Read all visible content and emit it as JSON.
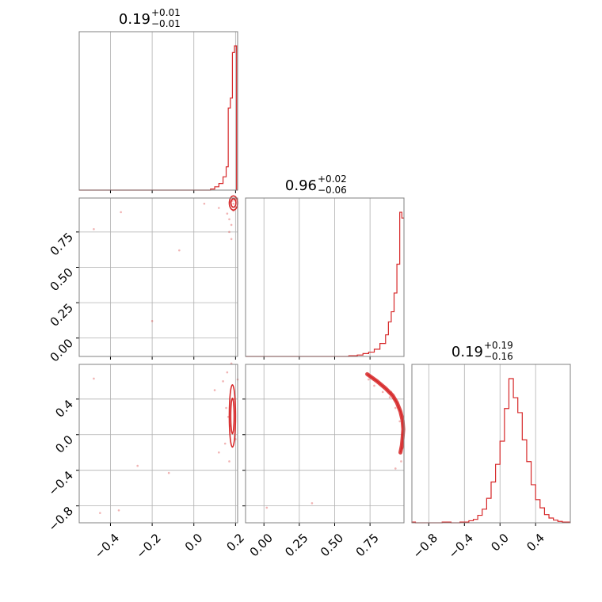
{
  "accent_color": "#d62728",
  "chart_data": {
    "type": "corner",
    "parameters": [
      {
        "title_value": "0.19",
        "title_plus": "+0.01",
        "title_minus": "−0.01",
        "range": [
          -0.55,
          0.21
        ]
      },
      {
        "title_value": "0.96",
        "title_plus": "+0.02",
        "title_minus": "−0.06",
        "range": [
          -0.13,
          0.99
        ]
      },
      {
        "title_value": "0.19",
        "title_plus": "+0.19",
        "title_minus": "−0.16",
        "range": [
          -0.99,
          0.79
        ]
      }
    ],
    "x_tick_labels": [
      [
        "−0.4",
        "−0.2",
        "0.0",
        "0.2"
      ],
      [
        "0.00",
        "0.25",
        "0.50",
        "0.75"
      ],
      [
        "−0.8",
        "−0.4",
        "0.0",
        "0.4"
      ]
    ],
    "y_tick_labels": {
      "row1": [
        "0.00",
        "0.25",
        "0.50",
        "0.75"
      ],
      "row2": [
        "−0.8",
        "−0.4",
        "0.0",
        "0.4"
      ]
    },
    "hist_0": {
      "bin_edges": [
        -0.55,
        0.08,
        0.1,
        0.12,
        0.14,
        0.155,
        0.165,
        0.175,
        0.185,
        0.195,
        0.205,
        0.21
      ],
      "counts": [
        0,
        2,
        6,
        12,
        24,
        42,
        148,
        166,
        248,
        260,
        0
      ]
    },
    "hist_1": {
      "bin_edges": [
        -0.13,
        0.6,
        0.66,
        0.7,
        0.74,
        0.78,
        0.82,
        0.86,
        0.88,
        0.9,
        0.92,
        0.94,
        0.96,
        0.975,
        0.99
      ],
      "counts": [
        0,
        1,
        2,
        4,
        6,
        10,
        18,
        30,
        48,
        62,
        88,
        128,
        200,
        192
      ]
    },
    "hist_2": {
      "bin_edges": [
        -0.99,
        -0.95,
        -0.85,
        -0.75,
        -0.65,
        -0.55,
        -0.45,
        -0.35,
        -0.3,
        -0.25,
        -0.2,
        -0.15,
        -0.1,
        -0.05,
        0.0,
        0.05,
        0.1,
        0.15,
        0.2,
        0.25,
        0.3,
        0.35,
        0.4,
        0.45,
        0.5,
        0.55,
        0.6,
        0.65,
        0.7,
        0.79
      ],
      "counts": [
        1,
        0,
        0,
        0,
        1,
        0,
        1,
        3,
        5,
        11,
        20,
        36,
        60,
        86,
        120,
        168,
        212,
        184,
        162,
        122,
        90,
        56,
        34,
        22,
        12,
        7,
        4,
        2,
        1
      ]
    },
    "scatter_01": [
      [
        -0.48,
        0.77
      ],
      [
        -0.35,
        0.89
      ],
      [
        -0.2,
        0.12
      ],
      [
        -0.07,
        0.62
      ],
      [
        0.05,
        0.95
      ],
      [
        0.12,
        0.92
      ],
      [
        0.16,
        0.88
      ],
      [
        0.17,
        0.84
      ],
      [
        0.18,
        0.8
      ],
      [
        0.19,
        0.95
      ],
      [
        0.2,
        0.97
      ],
      [
        0.185,
        0.97
      ],
      [
        0.175,
        0.96
      ],
      [
        0.195,
        0.98
      ],
      [
        0.17,
        0.75
      ],
      [
        0.18,
        0.7
      ],
      [
        0.19,
        0.9
      ]
    ],
    "contour_01": [
      {
        "center": [
          0.19,
          0.955
        ],
        "radius": [
          0.012,
          0.03
        ]
      },
      {
        "center": [
          0.19,
          0.955
        ],
        "radius": [
          0.02,
          0.05
        ]
      }
    ],
    "scatter_02": [
      [
        -0.48,
        0.63
      ],
      [
        -0.45,
        -0.88
      ],
      [
        -0.36,
        -0.85
      ],
      [
        -0.27,
        -0.35
      ],
      [
        -0.12,
        -0.43
      ],
      [
        0.1,
        0.5
      ],
      [
        0.12,
        -0.2
      ],
      [
        0.14,
        0.6
      ],
      [
        0.15,
        -0.1
      ],
      [
        0.16,
        0.7
      ],
      [
        0.17,
        -0.3
      ],
      [
        0.18,
        0.8
      ],
      [
        0.19,
        0.4
      ],
      [
        0.2,
        -0.05
      ],
      [
        0.21,
        0.62
      ],
      [
        0.155,
        0.3
      ],
      [
        0.165,
        0.2
      ],
      [
        0.175,
        0.1
      ]
    ],
    "contour_02": [
      {
        "center": [
          0.185,
          0.21
        ],
        "radius": [
          0.008,
          0.2
        ]
      },
      {
        "center": [
          0.185,
          0.21
        ],
        "radius": [
          0.015,
          0.35
        ]
      }
    ],
    "scatter_12": [
      [
        0.02,
        -0.82
      ],
      [
        0.34,
        -0.77
      ],
      [
        0.74,
        0.62
      ],
      [
        0.78,
        0.55
      ],
      [
        0.84,
        0.48
      ],
      [
        0.89,
        0.42
      ],
      [
        0.93,
        0.3
      ],
      [
        0.96,
        0.15
      ],
      [
        0.98,
        0.0
      ],
      [
        0.98,
        -0.15
      ],
      [
        0.97,
        -0.3
      ],
      [
        0.93,
        -0.38
      ],
      [
        0.9,
        0.48
      ]
    ],
    "arc_12": [
      [
        0.73,
        0.68
      ],
      [
        0.8,
        0.6
      ],
      [
        0.86,
        0.52
      ],
      [
        0.91,
        0.44
      ],
      [
        0.94,
        0.36
      ],
      [
        0.965,
        0.26
      ],
      [
        0.98,
        0.16
      ],
      [
        0.985,
        0.06
      ],
      [
        0.98,
        -0.04
      ],
      [
        0.975,
        -0.12
      ],
      [
        0.965,
        -0.2
      ]
    ]
  }
}
